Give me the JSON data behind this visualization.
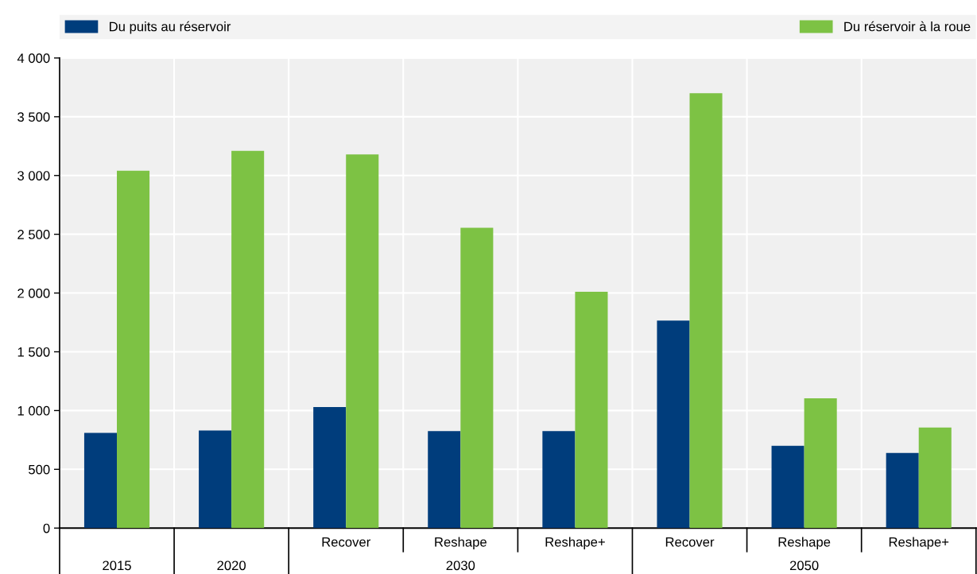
{
  "chart_data": {
    "type": "bar",
    "categories": [
      "2015",
      "2020",
      "Recover",
      "Reshape",
      "Reshape+",
      "Recover",
      "Reshape",
      "Reshape+"
    ],
    "series": [
      {
        "name": "Du puits au réservoir",
        "color": "#003d7c",
        "values": [
          810,
          830,
          1030,
          825,
          825,
          1765,
          700,
          640
        ]
      },
      {
        "name": "Du réservoir à la roue",
        "color": "#7dc244",
        "values": [
          3040,
          3210,
          3180,
          2555,
          2010,
          3700,
          1105,
          855
        ]
      }
    ],
    "annotations": [
      "2030",
      "2050"
    ],
    "ylim": [
      0,
      4000
    ],
    "yticks": [
      0,
      {
        "value": 500,
        "label": "500"
      },
      {
        "value": 1000,
        "label": "1 000"
      },
      {
        "value": 1500,
        "label": "1 500"
      },
      {
        "value": 2000,
        "label": "2 000"
      },
      {
        "value": 2500,
        "label": "2 500"
      },
      {
        "value": 3000,
        "label": "3 000"
      },
      {
        "value": 3500,
        "label": "3 500"
      },
      {
        "value": 4000,
        "label": "4 000"
      }
    ],
    "grid": true,
    "legend": "top"
  }
}
